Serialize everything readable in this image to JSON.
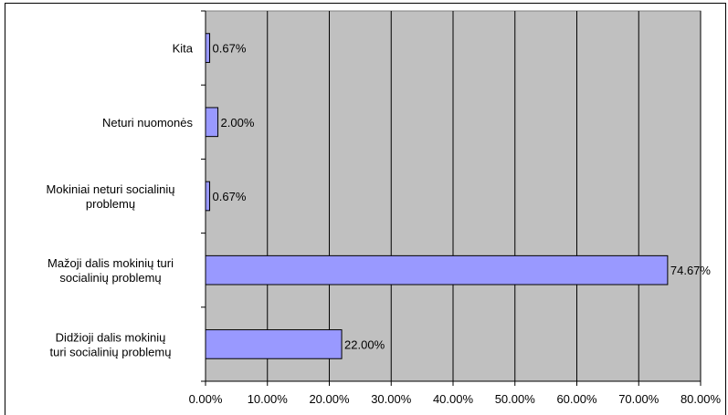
{
  "chart_data": {
    "type": "bar",
    "orientation": "horizontal",
    "categories": [
      [
        "Kita"
      ],
      [
        "Neturi nuomonės"
      ],
      [
        "Mokiniai neturi socialinių",
        "problemų"
      ],
      [
        "Mažoji dalis mokinių turi",
        "socialinių problemų"
      ],
      [
        "Didžioji dalis mokinių",
        "turi socialinių problemų"
      ]
    ],
    "values": [
      0.67,
      2.0,
      0.67,
      74.67,
      22.0
    ],
    "data_labels": [
      "0.67%",
      "2.00%",
      "0.67%",
      "74.67%",
      "22.00%"
    ],
    "xlim": [
      0,
      80
    ],
    "x_ticks": [
      0,
      10,
      20,
      30,
      40,
      50,
      60,
      70,
      80
    ],
    "x_tick_labels": [
      "0.00%",
      "10.00%",
      "20.00%",
      "30.00%",
      "40.00%",
      "50.00%",
      "60.00%",
      "70.00%",
      "80.00%"
    ],
    "grid": true,
    "legend": "none",
    "colors": {
      "plot_background": "#c0c0c0",
      "bar_fill": "#9999ff",
      "bar_stroke": "#000000",
      "grid": "#000000"
    }
  }
}
